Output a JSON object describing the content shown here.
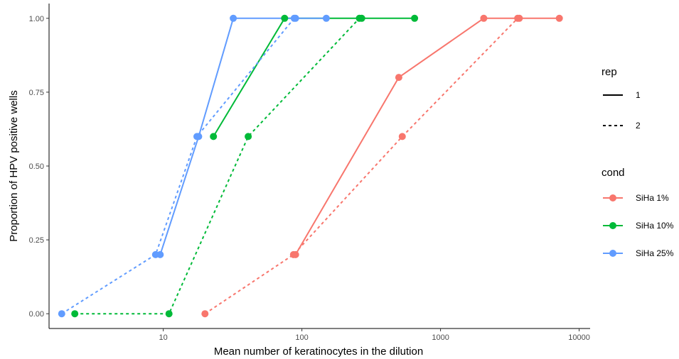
{
  "chart_data": {
    "type": "line",
    "xlabel": "Mean number of keratinocytes in the dilution",
    "ylabel": "Proportion of HPV positive wells",
    "x_scale": "log10",
    "xlim": [
      1.5,
      12000
    ],
    "ylim": [
      -0.05,
      1.05
    ],
    "x_ticks": [
      10,
      100,
      1000,
      10000
    ],
    "x_tick_labels": [
      "10",
      "100",
      "1000",
      "10000"
    ],
    "y_ticks": [
      0,
      0.25,
      0.5,
      0.75,
      1
    ],
    "y_tick_labels": [
      "0.00",
      "0.25",
      "0.50",
      "0.75",
      "1.00"
    ],
    "grid": false,
    "legend_placement": "right",
    "legends": {
      "rep": {
        "title": "rep",
        "entries": [
          {
            "label": "1",
            "linetype": "solid"
          },
          {
            "label": "2",
            "linetype": "dashed"
          }
        ]
      },
      "cond": {
        "title": "cond",
        "entries": [
          {
            "label": "SiHa 1%",
            "color": "#F8766D"
          },
          {
            "label": "SiHa 10%",
            "color": "#00BA38"
          },
          {
            "label": "SiHa 25%",
            "color": "#619CFF"
          }
        ]
      }
    },
    "series": [
      {
        "cond": "SiHa 1%",
        "rep": "1",
        "color": "#F8766D",
        "linetype": "solid",
        "x": [
          90,
          500,
          2050,
          3700,
          7200
        ],
        "y": [
          0.2,
          0.8,
          1.0,
          1.0,
          1.0
        ]
      },
      {
        "cond": "SiHa 1%",
        "rep": "2",
        "color": "#F8766D",
        "linetype": "dashed",
        "x": [
          20,
          87,
          530,
          3600
        ],
        "y": [
          0.0,
          0.2,
          0.6,
          1.0
        ]
      },
      {
        "cond": "SiHa 10%",
        "rep": "1",
        "color": "#00BA38",
        "linetype": "solid",
        "x": [
          23,
          75,
          270,
          650
        ],
        "y": [
          0.6,
          1.0,
          1.0,
          1.0
        ]
      },
      {
        "cond": "SiHa 10%",
        "rep": "2",
        "color": "#00BA38",
        "linetype": "dashed",
        "x": [
          2.3,
          11,
          41,
          260
        ],
        "y": [
          0.0,
          0.0,
          0.6,
          1.0
        ]
      },
      {
        "cond": "SiHa 25%",
        "rep": "1",
        "color": "#619CFF",
        "linetype": "solid",
        "x": [
          9.5,
          18,
          32,
          90,
          150
        ],
        "y": [
          0.2,
          0.6,
          1.0,
          1.0,
          1.0
        ]
      },
      {
        "cond": "SiHa 25%",
        "rep": "2",
        "color": "#619CFF",
        "linetype": "dashed",
        "x": [
          1.85,
          8.8,
          17.5,
          88
        ],
        "y": [
          0.0,
          0.2,
          0.6,
          1.0
        ]
      }
    ]
  }
}
